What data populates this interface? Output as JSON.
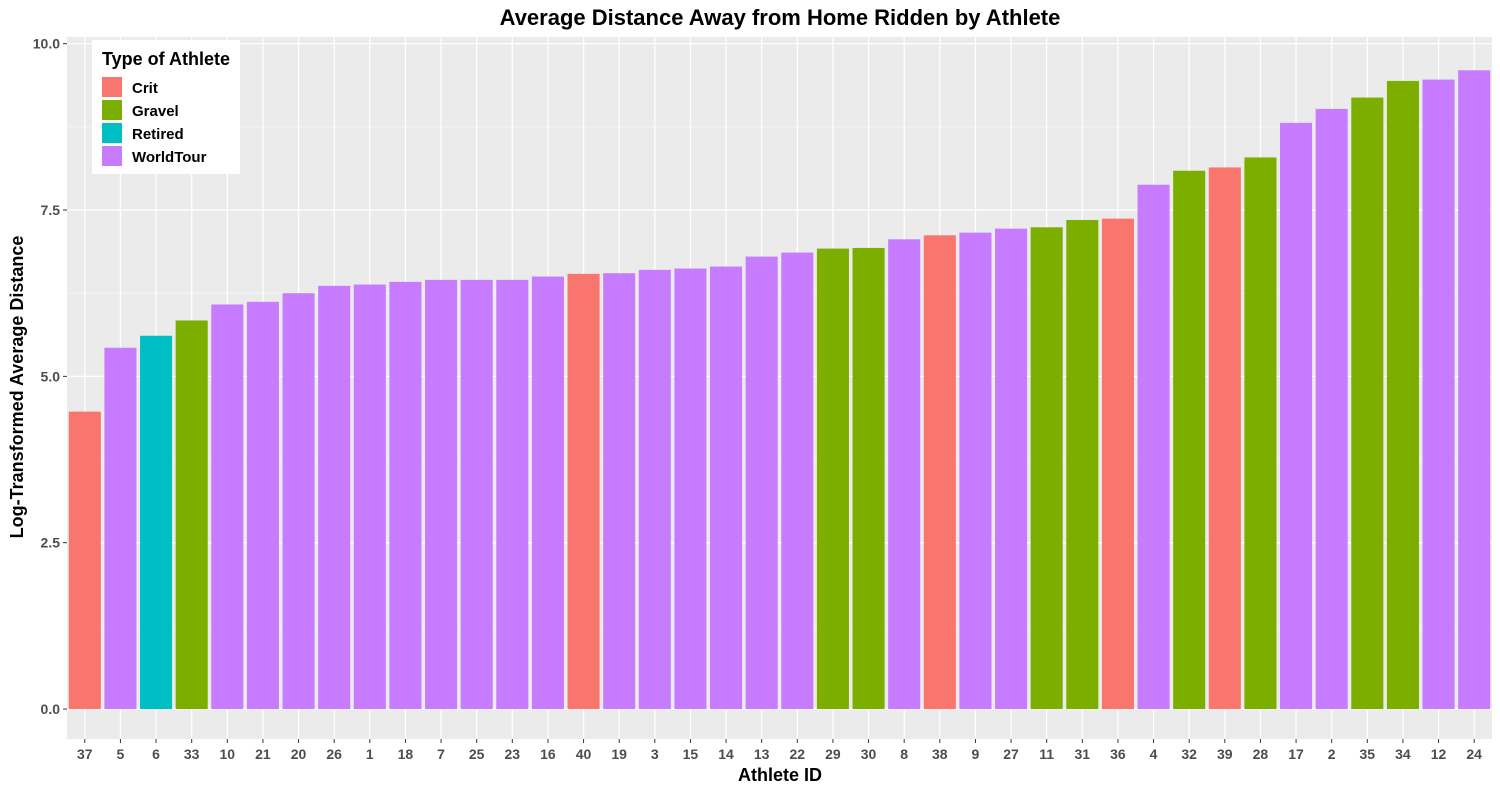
{
  "chart_data": {
    "type": "bar",
    "title": "Average Distance Away from Home Ridden by Athlete",
    "xlabel": "Athlete ID",
    "ylabel": "Log-Transformed Average Distance",
    "ylim": [
      -0.45,
      10.1
    ],
    "yticks": [
      0.0,
      2.5,
      5.0,
      7.5,
      10.0
    ],
    "ytick_labels": [
      "0.0",
      "2.5",
      "5.0",
      "7.5",
      "10.0"
    ],
    "grid": true,
    "legend": {
      "title": "Type of Athlete",
      "placement": "top-left",
      "items": [
        {
          "label": "Crit",
          "color": "#F8766D"
        },
        {
          "label": "Gravel",
          "color": "#7CAE00"
        },
        {
          "label": "Retired",
          "color": "#00BFC4"
        },
        {
          "label": "WorldTour",
          "color": "#C77CFF"
        }
      ]
    },
    "categories": [
      "37",
      "5",
      "6",
      "33",
      "10",
      "21",
      "20",
      "26",
      "1",
      "18",
      "7",
      "25",
      "23",
      "16",
      "40",
      "19",
      "3",
      "15",
      "14",
      "13",
      "22",
      "29",
      "30",
      "8",
      "38",
      "9",
      "27",
      "11",
      "31",
      "36",
      "4",
      "32",
      "39",
      "28",
      "17",
      "2",
      "35",
      "34",
      "12",
      "24"
    ],
    "values": [
      4.47,
      5.43,
      5.61,
      5.84,
      6.08,
      6.12,
      6.25,
      6.36,
      6.38,
      6.42,
      6.45,
      6.45,
      6.45,
      6.5,
      6.54,
      6.55,
      6.6,
      6.62,
      6.65,
      6.8,
      6.86,
      6.92,
      6.93,
      7.06,
      7.12,
      7.16,
      7.22,
      7.24,
      7.35,
      7.37,
      7.88,
      8.09,
      8.14,
      8.29,
      8.81,
      9.02,
      9.19,
      9.44,
      9.46,
      9.6
    ],
    "groups": [
      "Crit",
      "WorldTour",
      "Retired",
      "Gravel",
      "WorldTour",
      "WorldTour",
      "WorldTour",
      "WorldTour",
      "WorldTour",
      "WorldTour",
      "WorldTour",
      "WorldTour",
      "WorldTour",
      "WorldTour",
      "Crit",
      "WorldTour",
      "WorldTour",
      "WorldTour",
      "WorldTour",
      "WorldTour",
      "WorldTour",
      "Gravel",
      "Gravel",
      "WorldTour",
      "Crit",
      "WorldTour",
      "WorldTour",
      "Gravel",
      "Gravel",
      "Crit",
      "WorldTour",
      "Gravel",
      "Crit",
      "Gravel",
      "WorldTour",
      "WorldTour",
      "Gravel",
      "Gravel",
      "WorldTour",
      "WorldTour"
    ]
  },
  "colors": {
    "panel_background": "#EBEBEB",
    "grid_major": "#FFFFFF",
    "grid_minor": "#F5F5F5"
  }
}
